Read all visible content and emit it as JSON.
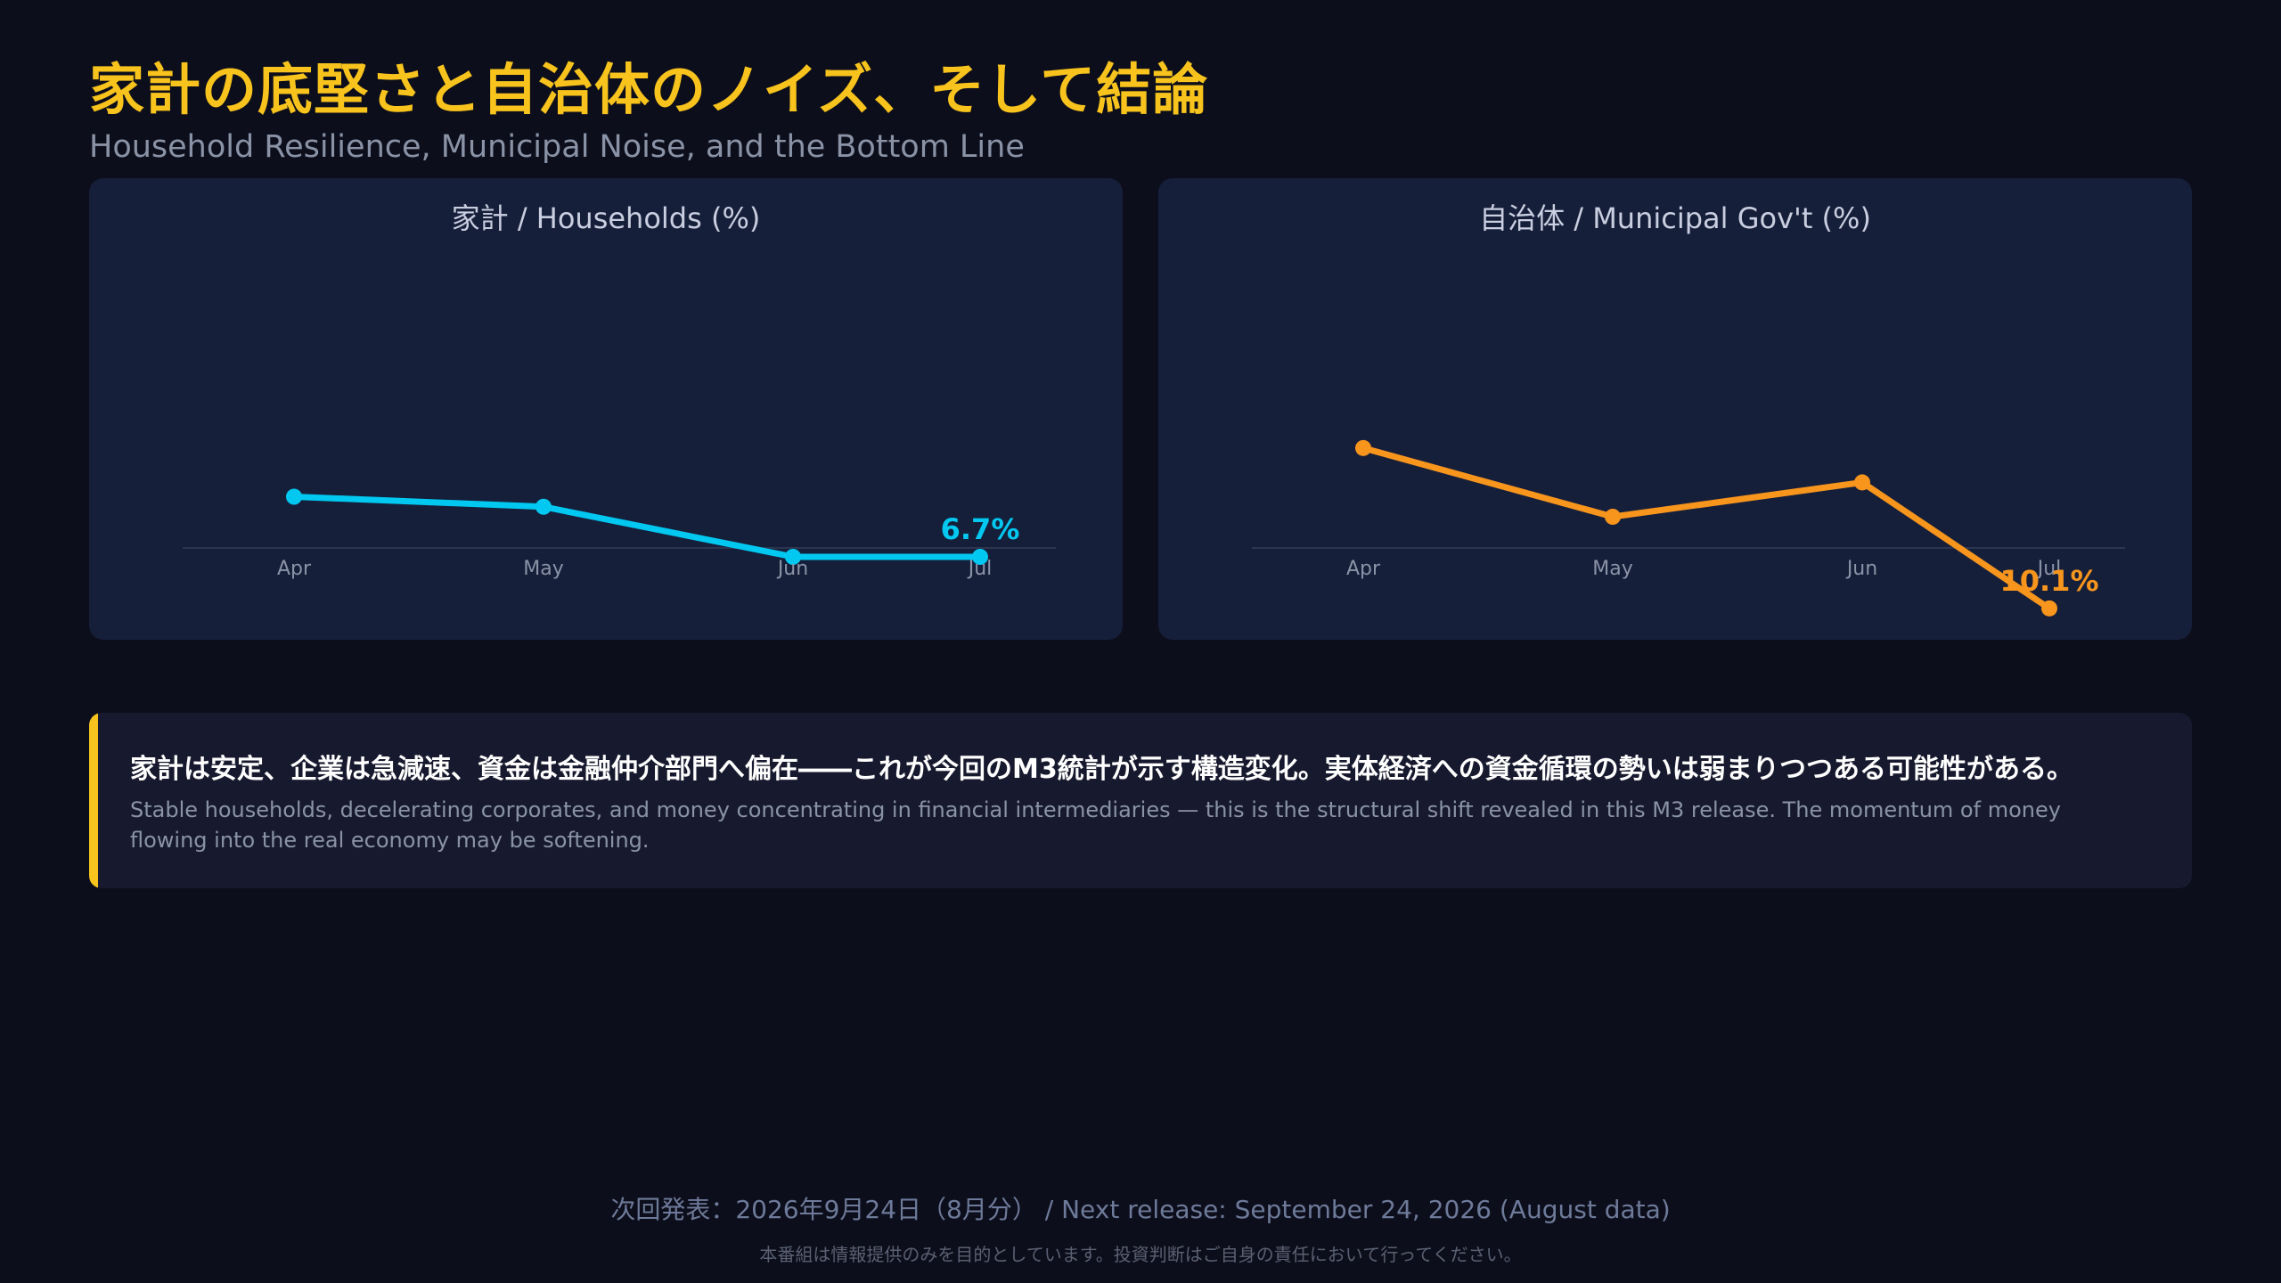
{
  "header": {
    "title": "家計の底堅さと自治体のノイズ、そして結論",
    "subtitle": "Household Resilience, Municipal Noise, and the Bottom Line"
  },
  "chart_data": [
    {
      "type": "line",
      "title": "家計 / Households (%)",
      "categories": [
        "Apr",
        "May",
        "Jun",
        "Jul"
      ],
      "series": [
        {
          "values": [
            7.3,
            7.2,
            6.7,
            6.7
          ]
        }
      ],
      "end_label": "6.7%",
      "ylim": [
        5.5,
        8.7
      ],
      "grid": false,
      "color": "#00c8f0"
    },
    {
      "type": "line",
      "title": "自治体 / Municipal Gov't (%)",
      "categories": [
        "Apr",
        "May",
        "Jun",
        "Jul"
      ],
      "series": [
        {
          "values": [
            11.5,
            10.9,
            11.2,
            10.1
          ]
        }
      ],
      "end_label": "10.1%",
      "ylim": [
        9.5,
        12.3
      ],
      "grid": false,
      "color": "#f7951c"
    }
  ],
  "conclusion": {
    "ja": "家計は安定、企業は急減速、資金は金融仲介部門へ偏在――これが今回のM3統計が示す構造変化。実体経済への資金循環の勢いは弱まりつつある可能性がある。",
    "en": "Stable households, decelerating corporates, and money concentrating in financial intermediaries — this is the structural shift revealed in this M3 release. The momentum of money flowing into the real economy may be softening.",
    "accent_color": "#f7c31c"
  },
  "footer": {
    "next_release": "次回発表：2026年9月24日（8月分） / Next release: September 24, 2026 (August data)",
    "disclaimer": "本番組は情報提供のみを目的としています。投資判断はご自身の責任において行ってください。"
  }
}
